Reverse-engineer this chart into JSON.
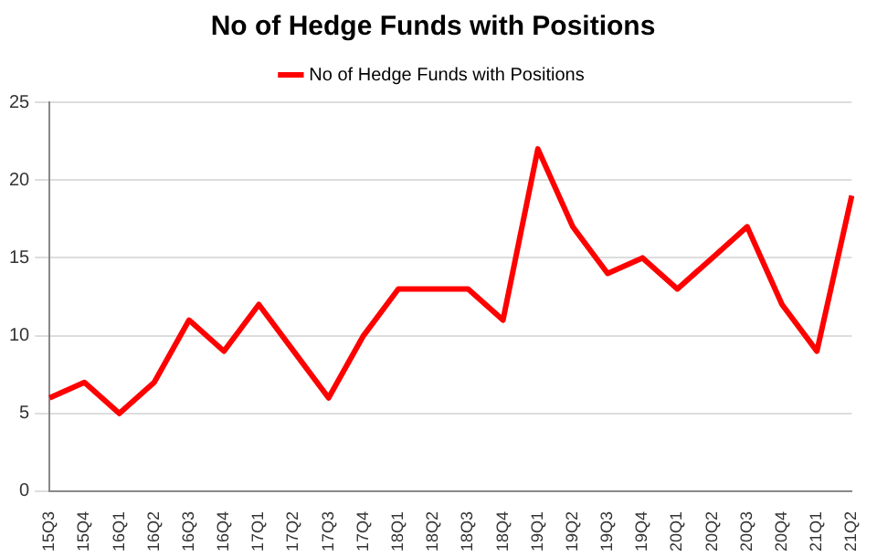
{
  "chart_data": {
    "type": "line",
    "title": "No of Hedge Funds with Positions",
    "categories": [
      "15Q3",
      "15Q4",
      "16Q1",
      "16Q2",
      "16Q3",
      "16Q4",
      "17Q1",
      "17Q2",
      "17Q3",
      "17Q4",
      "18Q1",
      "18Q2",
      "18Q3",
      "18Q4",
      "19Q1",
      "19Q2",
      "19Q3",
      "19Q4",
      "20Q1",
      "20Q2",
      "20Q3",
      "20Q4",
      "21Q1",
      "21Q2"
    ],
    "series": [
      {
        "name": "No of Hedge Funds with Positions",
        "color": "#ff0000",
        "values": [
          6,
          7,
          5,
          7,
          11,
          9,
          12,
          9,
          6,
          10,
          13,
          13,
          13,
          11,
          22,
          17,
          14,
          15,
          13,
          15,
          17,
          12,
          9,
          19
        ]
      }
    ],
    "ylim": [
      0,
      25
    ],
    "yticks": [
      0,
      5,
      10,
      15,
      20,
      25
    ],
    "grid": "y",
    "legend": "top",
    "marker": "none",
    "line_style": "solid"
  }
}
